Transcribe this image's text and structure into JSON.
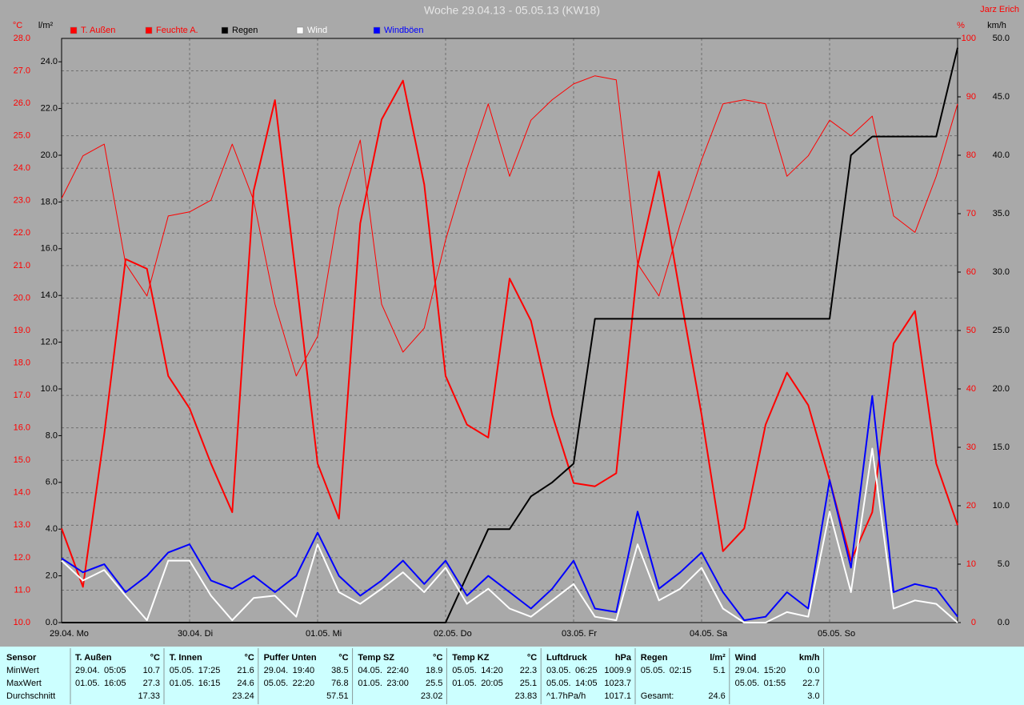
{
  "chart_data": {
    "type": "line",
    "title": "Woche 29.04.13 - 05.05.13 (KW18)",
    "author": "Jarz Erich",
    "x": [
      0,
      4,
      8,
      12,
      16,
      20,
      24,
      28,
      32,
      36,
      40,
      44,
      48,
      52,
      56,
      60,
      64,
      68,
      72,
      76,
      80,
      84,
      88,
      92,
      96,
      100,
      104,
      108,
      112,
      116,
      120,
      124,
      128,
      132,
      136,
      140,
      144,
      148,
      152,
      156,
      160,
      164,
      168
    ],
    "xlim": [
      0,
      168
    ],
    "xticks": [
      {
        "value": 0,
        "label": "29.04. Mo"
      },
      {
        "value": 24,
        "label": "30.04. Di"
      },
      {
        "value": 48,
        "label": "01.05. Mi"
      },
      {
        "value": 72,
        "label": "02.05. Do"
      },
      {
        "value": 96,
        "label": "03.05. Fr"
      },
      {
        "value": 120,
        "label": "04.05. Sa"
      },
      {
        "value": 144,
        "label": "05.05. So"
      }
    ],
    "ylabel": "°C",
    "ylim": [
      10,
      28
    ],
    "yticks": [
      {
        "value": 10,
        "label": "10.0"
      },
      {
        "value": 11,
        "label": "11.0"
      },
      {
        "value": 12,
        "label": "12.0"
      },
      {
        "value": 13,
        "label": "13.0"
      },
      {
        "value": 14,
        "label": "14.0"
      },
      {
        "value": 15,
        "label": "15.0"
      },
      {
        "value": 16,
        "label": "16.0"
      },
      {
        "value": 17,
        "label": "17.0"
      },
      {
        "value": 18,
        "label": "18.0"
      },
      {
        "value": 19,
        "label": "19.0"
      },
      {
        "value": 20,
        "label": "20.0"
      },
      {
        "value": 21,
        "label": "21.0"
      },
      {
        "value": 22,
        "label": "22.0"
      },
      {
        "value": 23,
        "label": "23.0"
      },
      {
        "value": 24,
        "label": "24.0"
      },
      {
        "value": 25,
        "label": "25.0"
      },
      {
        "value": 26,
        "label": "26.0"
      },
      {
        "value": 27,
        "label": "27.0"
      },
      {
        "value": 28,
        "label": "28.0"
      }
    ],
    "y3label": "l/m²",
    "y3lim": [
      0,
      25
    ],
    "y3ticks": [
      {
        "value": 0,
        "label": "0.0"
      },
      {
        "value": 2,
        "label": "2.0"
      },
      {
        "value": 4,
        "label": "4.0"
      },
      {
        "value": 6,
        "label": "6.0"
      },
      {
        "value": 8,
        "label": "8.0"
      },
      {
        "value": 10,
        "label": "10.0"
      },
      {
        "value": 12,
        "label": "12.0"
      },
      {
        "value": 14,
        "label": "14.0"
      },
      {
        "value": 16,
        "label": "16.0"
      },
      {
        "value": 18,
        "label": "18.0"
      },
      {
        "value": 20,
        "label": "20.0"
      },
      {
        "value": 22,
        "label": "22.0"
      },
      {
        "value": 24,
        "label": "24.0"
      }
    ],
    "y2label": "%",
    "y2lim": [
      0,
      100
    ],
    "y2ticks": [
      0,
      10,
      20,
      30,
      40,
      50,
      60,
      70,
      80,
      90,
      100
    ],
    "y4label": "km/h",
    "y4lim": [
      0,
      50
    ],
    "y4ticks": [
      {
        "value": 0,
        "label": "0.0"
      },
      {
        "value": 5,
        "label": "5.0"
      },
      {
        "value": 10,
        "label": "10.0"
      },
      {
        "value": 15,
        "label": "15.0"
      },
      {
        "value": 20,
        "label": "20.0"
      },
      {
        "value": 25,
        "label": "25.0"
      },
      {
        "value": 30,
        "label": "30.0"
      },
      {
        "value": 35,
        "label": "35.0"
      },
      {
        "value": 40,
        "label": "40.0"
      },
      {
        "value": 45,
        "label": "45.0"
      },
      {
        "value": 50,
        "label": "50.0"
      }
    ],
    "grid": true,
    "series": [
      {
        "name": "T. Außen",
        "color": "#ff0000",
        "axis": "y",
        "line_width": 2,
        "values": [
          12.9,
          11.1,
          15.8,
          21.2,
          20.9,
          17.6,
          16.6,
          14.9,
          13.4,
          23.3,
          26.1,
          20.6,
          14.9,
          13.2,
          22.3,
          25.5,
          26.7,
          23.5,
          17.6,
          16.1,
          15.7,
          20.6,
          19.3,
          16.4,
          14.3,
          14.2,
          14.6,
          21.0,
          23.9,
          20.1,
          16.4,
          12.2,
          12.9,
          16.1,
          17.7,
          16.7,
          14.4,
          11.9,
          13.4,
          18.6,
          19.6,
          14.9,
          13.0
        ]
      },
      {
        "name": "Feuchte A.",
        "color": "#ff0000",
        "axis": "y2",
        "line_width": 1,
        "values": [
          72.6,
          79.9,
          81.9,
          61.4,
          55.9,
          69.6,
          70.3,
          72.3,
          81.9,
          72.3,
          54.5,
          42.2,
          49.0,
          71.0,
          82.6,
          54.5,
          46.3,
          50.4,
          65.5,
          77.8,
          88.8,
          76.4,
          86.0,
          89.5,
          92.2,
          93.6,
          92.9,
          61.4,
          55.9,
          68.2,
          79.2,
          88.8,
          89.5,
          88.8,
          76.4,
          79.9,
          86.0,
          83.3,
          86.7,
          69.6,
          66.8,
          76.4,
          88.8
        ]
      },
      {
        "name": "Regen",
        "color": "#000000",
        "axis": "y3",
        "line_width": 2,
        "values": [
          0,
          0,
          0,
          0,
          0,
          0,
          0,
          0,
          0,
          0,
          0,
          0,
          0,
          0,
          0,
          0,
          0,
          0,
          0,
          2.0,
          4.0,
          4.0,
          5.4,
          6.0,
          6.8,
          13.0,
          13.0,
          13.0,
          13.0,
          13.0,
          13.0,
          13.0,
          13.0,
          13.0,
          13.0,
          13.0,
          13.0,
          20.0,
          20.8,
          20.8,
          20.8,
          20.8,
          24.6
        ]
      },
      {
        "name": "Wind",
        "color": "#ffffff",
        "axis": "y4",
        "line_width": 2,
        "values": [
          5.3,
          3.6,
          4.5,
          2.3,
          0.2,
          5.3,
          5.3,
          2.3,
          0.2,
          2.1,
          2.3,
          0.5,
          6.7,
          2.6,
          1.6,
          2.9,
          4.3,
          2.6,
          4.7,
          1.6,
          2.9,
          1.2,
          0.5,
          1.9,
          3.3,
          0.5,
          0.2,
          6.7,
          1.9,
          2.9,
          4.7,
          1.2,
          0.0,
          0.0,
          0.9,
          0.5,
          9.5,
          2.6,
          14.9,
          1.2,
          1.9,
          1.6,
          0.0
        ]
      },
      {
        "name": "Windböen",
        "color": "#0000ff",
        "axis": "y4",
        "line_width": 2,
        "values": [
          5.5,
          4.3,
          5.0,
          2.6,
          4.0,
          6.0,
          6.7,
          3.6,
          2.9,
          4.0,
          2.6,
          4.0,
          7.7,
          4.0,
          2.3,
          3.6,
          5.3,
          3.3,
          5.3,
          2.3,
          4.0,
          2.6,
          1.2,
          2.9,
          5.3,
          1.2,
          0.9,
          9.5,
          2.9,
          4.3,
          6.0,
          2.6,
          0.2,
          0.5,
          2.6,
          1.2,
          12.2,
          4.7,
          19.4,
          2.6,
          3.3,
          2.9,
          0.5
        ]
      }
    ]
  },
  "table": {
    "row_labels": [
      "Sensor",
      "MinWert",
      "MaxWert",
      "Durchschnitt"
    ],
    "columns": [
      {
        "name": "T. Außen",
        "unit": "°C",
        "min": [
          "29.04.",
          "05:05",
          "10.7"
        ],
        "max": [
          "01.05.",
          "16:05",
          "27.3"
        ],
        "avg": [
          "17.33"
        ]
      },
      {
        "name": "T. Innen",
        "unit": "°C",
        "min": [
          "05.05.",
          "17:25",
          "21.6"
        ],
        "max": [
          "01.05.",
          "16:15",
          "24.6"
        ],
        "avg": [
          "23.24"
        ]
      },
      {
        "name": "Puffer Unten",
        "unit": "°C",
        "min": [
          "29.04.",
          "19:40",
          "38.5"
        ],
        "max": [
          "05.05.",
          "22:20",
          "76.8"
        ],
        "avg": [
          "57.51"
        ]
      },
      {
        "name": "Temp SZ",
        "unit": "°C",
        "min": [
          "04.05.",
          "22:40",
          "18.9"
        ],
        "max": [
          "01.05.",
          "23:00",
          "25.5"
        ],
        "avg": [
          "23.02"
        ]
      },
      {
        "name": "Temp KZ",
        "unit": "°C",
        "min": [
          "05.05.",
          "14:20",
          "22.3"
        ],
        "max": [
          "01.05.",
          "20:05",
          "25.1"
        ],
        "avg": [
          "23.83"
        ]
      },
      {
        "name": "Luftdruck",
        "unit": "hPa",
        "min": [
          "03.05.",
          "06:25",
          "1009.9"
        ],
        "max": [
          "05.05.",
          "14:05",
          "1023.7"
        ],
        "avg": [
          "^1.7hPa/h",
          "1017.1"
        ]
      },
      {
        "name": "Regen",
        "unit": "l/m²",
        "min": [
          "05.05.",
          "02:15",
          "5.1"
        ],
        "max": [],
        "avg": [
          "Gesamt:",
          "24.6"
        ]
      },
      {
        "name": "Wind",
        "unit": "km/h",
        "min": [
          "29.04.",
          "15:20",
          "0.0"
        ],
        "max": [
          "05.05.",
          "01:55",
          "22.7"
        ],
        "avg": [
          "3.0"
        ]
      }
    ]
  }
}
